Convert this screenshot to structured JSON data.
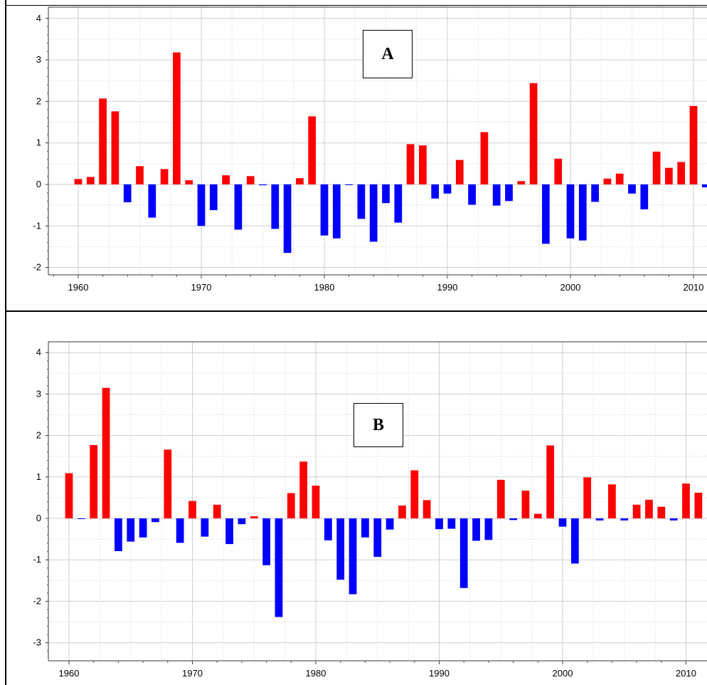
{
  "chart_data": [
    {
      "type": "bar",
      "panel_label": "A",
      "x": [
        1960,
        1961,
        1962,
        1963,
        1964,
        1965,
        1966,
        1967,
        1968,
        1969,
        1970,
        1971,
        1972,
        1973,
        1974,
        1975,
        1976,
        1977,
        1978,
        1979,
        1980,
        1981,
        1982,
        1983,
        1984,
        1985,
        1986,
        1987,
        1988,
        1989,
        1990,
        1991,
        1992,
        1993,
        1994,
        1995,
        1996,
        1997,
        1998,
        1999,
        2000,
        2001,
        2002,
        2003,
        2004,
        2005,
        2006,
        2007,
        2008,
        2009,
        2010,
        2011
      ],
      "values": [
        0.13,
        0.18,
        2.07,
        1.76,
        -0.43,
        0.44,
        -0.8,
        0.37,
        3.18,
        0.1,
        -1.0,
        -0.62,
        0.22,
        -1.09,
        0.2,
        -0.02,
        -1.07,
        -1.65,
        0.15,
        1.64,
        -1.23,
        -1.3,
        -0.01,
        -0.83,
        -1.38,
        -0.45,
        -0.92,
        0.97,
        0.94,
        -0.34,
        -0.22,
        0.59,
        -0.49,
        1.26,
        -0.51,
        -0.4,
        0.08,
        2.44,
        -1.43,
        0.62,
        -1.3,
        -1.35,
        -0.42,
        0.14,
        0.26,
        -0.22,
        -0.6,
        0.79,
        0.4,
        0.54,
        1.89,
        -0.07
      ],
      "positive_color": "#ff0000",
      "negative_color": "#0000ff",
      "x_ticks": [
        "1960",
        "1970",
        "1980",
        "1990",
        "2000",
        "2010"
      ],
      "y_ticks": [
        "4",
        "3",
        "2",
        "1",
        "0",
        "-1",
        "-2"
      ],
      "ylim": [
        -2.3,
        4.2
      ],
      "grid": true
    },
    {
      "type": "bar",
      "panel_label": "B",
      "x": [
        1960,
        1961,
        1962,
        1963,
        1964,
        1965,
        1966,
        1967,
        1968,
        1969,
        1970,
        1971,
        1972,
        1973,
        1974,
        1975,
        1976,
        1977,
        1978,
        1979,
        1980,
        1981,
        1982,
        1983,
        1984,
        1985,
        1986,
        1987,
        1988,
        1989,
        1990,
        1991,
        1992,
        1993,
        1994,
        1995,
        1996,
        1997,
        1998,
        1999,
        2000,
        2001,
        2002,
        2003,
        2004,
        2005,
        2006,
        2007,
        2008,
        2009,
        2010,
        2011
      ],
      "values": [
        1.09,
        -0.01,
        1.77,
        3.15,
        -0.79,
        -0.56,
        -0.46,
        -0.09,
        1.66,
        -0.59,
        0.42,
        -0.44,
        0.33,
        -0.62,
        -0.14,
        0.05,
        -1.13,
        -2.38,
        0.61,
        1.37,
        0.79,
        -0.53,
        -1.48,
        -1.83,
        -0.46,
        -0.93,
        -0.27,
        0.31,
        1.16,
        0.44,
        -0.26,
        -0.25,
        -1.68,
        -0.54,
        -0.52,
        0.93,
        -0.04,
        0.67,
        0.11,
        1.76,
        -0.2,
        -1.09,
        0.99,
        -0.05,
        0.82,
        -0.05,
        0.33,
        0.45,
        0.28,
        -0.05,
        0.84,
        0.62
      ],
      "positive_color": "#ff0000",
      "negative_color": "#0000ff",
      "x_ticks": [
        "1960",
        "1970",
        "1980",
        "1990",
        "2000",
        "2010"
      ],
      "y_ticks": [
        "4",
        "3",
        "2",
        "1",
        "0",
        "-1",
        "-2",
        "-3"
      ],
      "ylim": [
        -3.3,
        4.2
      ],
      "grid": true
    }
  ]
}
